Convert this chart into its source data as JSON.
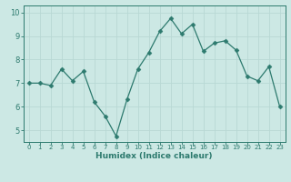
{
  "x": [
    0,
    1,
    2,
    3,
    4,
    5,
    6,
    7,
    8,
    9,
    10,
    11,
    12,
    13,
    14,
    15,
    16,
    17,
    18,
    19,
    20,
    21,
    22,
    23
  ],
  "y": [
    7.0,
    7.0,
    6.9,
    7.6,
    7.1,
    7.5,
    6.2,
    5.6,
    4.75,
    6.3,
    7.6,
    8.3,
    9.2,
    9.75,
    9.1,
    9.5,
    8.35,
    8.7,
    8.8,
    8.4,
    7.3,
    7.1,
    7.7,
    6.0
  ],
  "xlabel": "Humidex (Indice chaleur)",
  "ylim": [
    4.5,
    10.3
  ],
  "xlim": [
    -0.5,
    23.5
  ],
  "bg_color": "#cce8e4",
  "line_color": "#2d7a6e",
  "marker_color": "#2d7a6e",
  "grid_color_major": "#b8d8d4",
  "grid_color_minor": "#d4ecea",
  "tick_label_color": "#2d7a6e",
  "xlabel_color": "#2d7a6e",
  "yticks": [
    5,
    6,
    7,
    8,
    9,
    10
  ],
  "xticks": [
    0,
    1,
    2,
    3,
    4,
    5,
    6,
    7,
    8,
    9,
    10,
    11,
    12,
    13,
    14,
    15,
    16,
    17,
    18,
    19,
    20,
    21,
    22,
    23
  ],
  "spine_color": "#2d7a6e",
  "line_width": 0.9,
  "marker_size": 2.5
}
